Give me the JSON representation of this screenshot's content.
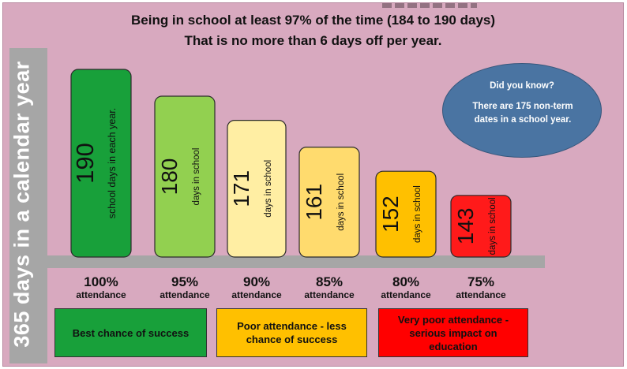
{
  "header": {
    "line1": "Being in school at least 97% of the time (184 to 190 days)",
    "line2": "That is no more than 6 days off per year."
  },
  "y_axis_label": "365 days in a calendar year",
  "chart_data": {
    "type": "bar",
    "title": "",
    "categories": [
      "100%",
      "95%",
      "90%",
      "85%",
      "80%",
      "75%"
    ],
    "category_sublabel": "attendance",
    "values": [
      190,
      180,
      171,
      161,
      152,
      143
    ],
    "bar_captions": [
      "school days in each year.",
      "days in school",
      "days in school",
      "days in school",
      "days in school",
      "days in school"
    ],
    "bar_colors": [
      "#18a03a",
      "#92d050",
      "#ffeea3",
      "#ffdb6e",
      "#ffc000",
      "#ff1a1a"
    ],
    "xlabel": "",
    "ylabel": "365 days in a calendar year",
    "ylim": [
      0,
      200
    ],
    "grid": false
  },
  "callout": {
    "question": "Did you know?",
    "text": "There are 175 non-term dates in a  school year."
  },
  "legend": [
    {
      "label": "Best chance of success",
      "color": "#18a03a"
    },
    {
      "label": "Poor attendance - less chance of success",
      "color": "#ffc000"
    },
    {
      "label": "Very poor attendance - serious impact on education",
      "color": "#ff0000"
    }
  ]
}
